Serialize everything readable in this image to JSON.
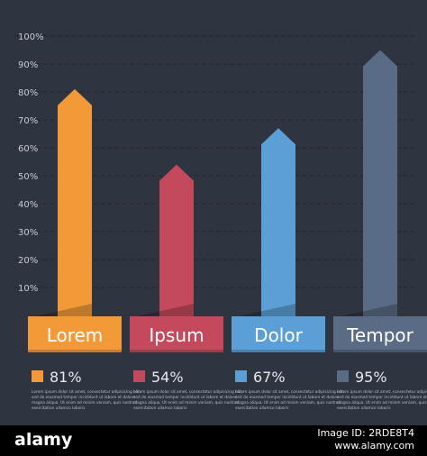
{
  "chart_data": {
    "type": "bar",
    "categories": [
      "Lorem",
      "Ipsum",
      "Dolor",
      "Tempor"
    ],
    "values": [
      81,
      54,
      67,
      95
    ],
    "value_labels": [
      "81%",
      "54%",
      "67%",
      "95%"
    ],
    "colors": [
      "#f29a38",
      "#c4495c",
      "#5b9fd6",
      "#5a6b85"
    ],
    "ylim": [
      0,
      100
    ],
    "yticks": [
      "10%",
      "20%",
      "30%",
      "40%",
      "50%",
      "60%",
      "70%",
      "80%",
      "90%",
      "100%"
    ],
    "grid": true,
    "descriptions": [
      [
        "Lorem ipsum dolor sit amet, consectetur adipisicing elit,",
        "sed do eiusmod tempor incididunt ut labore et dolore",
        "magna aliqua. Ut enim ad minim veniam, quis nostrud",
        "exercitation ullamco laboris"
      ],
      [
        "Lorem ipsum dolor sit amet, consectetur adipisicing elit,",
        "sed do eiusmod tempor incididunt ut labore et dolore",
        "magna aliqua. Ut enim ad minim veniam, quis nostrud",
        "exercitation ullamco laboris"
      ],
      [
        "Lorem ipsum dolor sit amet, consectetur adipisicing elit,",
        "sed do eiusmod tempor incididunt ut labore et dolore",
        "magna aliqua. Ut enim ad minim veniam, quis nostrud",
        "exercitation ullamco laboris"
      ],
      [
        "Lorem ipsum dolor sit amet, consectetur adipisicing elit,",
        "sed do eiusmod tempor incididunt ut labore et dolore",
        "magna aliqua. Ut enim ad minim veniam, quis nostrud",
        "exercitation ullamco laboris"
      ]
    ]
  },
  "footer": {
    "brand": "alamy",
    "image_id": "Image ID: 2RDE8T4",
    "site": "www.alamy.com"
  }
}
